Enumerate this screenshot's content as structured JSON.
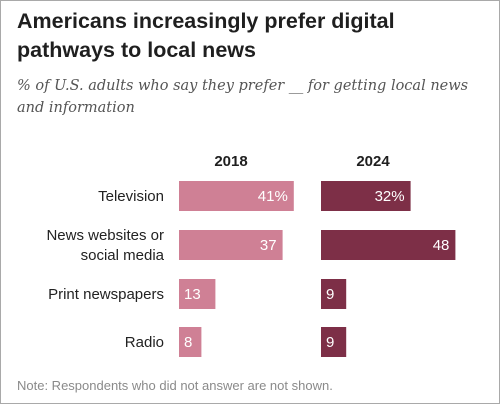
{
  "header": {
    "title": "Americans increasingly prefer digital pathways to local news",
    "subtitle": "% of U.S. adults who say they prefer __ for getting local news and information"
  },
  "footer": {
    "note": "Note: Respondents who did not answer are not shown."
  },
  "colors": {
    "series_2018": "#cf8095",
    "series_2024": "#7d2f47"
  },
  "chart_data": {
    "type": "bar",
    "orientation": "horizontal",
    "categories": [
      [
        "Television"
      ],
      [
        "News websites or",
        "social media"
      ],
      [
        "Print newspapers"
      ],
      [
        "Radio"
      ]
    ],
    "series": [
      {
        "name": "2018",
        "values": [
          41,
          37,
          13,
          8
        ],
        "labels": [
          "41%",
          "37",
          "13",
          "8"
        ]
      },
      {
        "name": "2024",
        "values": [
          32,
          48,
          9,
          9
        ],
        "labels": [
          "32%",
          "48",
          "9",
          "9"
        ]
      }
    ]
  }
}
